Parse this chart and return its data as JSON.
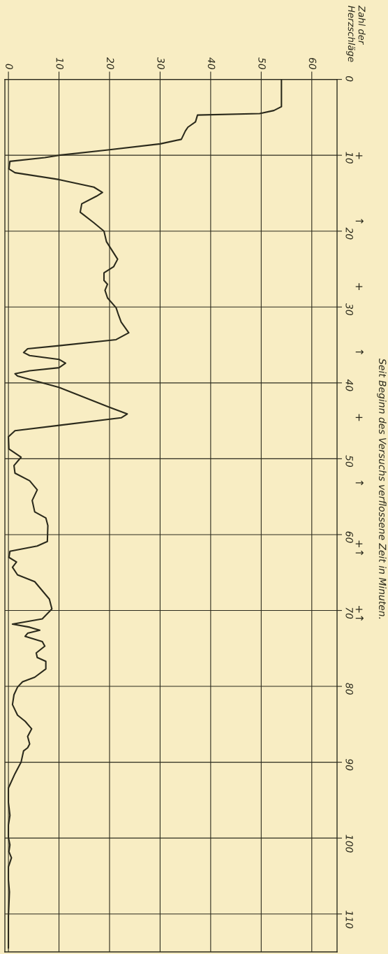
{
  "chart_data": {
    "type": "line",
    "title": "Zahl der\nHerzschläge",
    "ylabel": "Seit Beginn des Versuchs verflossene Zeit in Minuten.",
    "series": [
      {
        "color": "#2b2a1c",
        "x": [
          54,
          54,
          52.5,
          49.7,
          37.4,
          37,
          35.5,
          35,
          34.2,
          30,
          19.7,
          10,
          7.2,
          0.3,
          0.1,
          1.3,
          10,
          16.9,
          18.6,
          17.4,
          14.5,
          14.2,
          16.9,
          18.9,
          19.4,
          21.6,
          20.8,
          18.9,
          18.9,
          19.6,
          19.1,
          19.6,
          21.3,
          21.8,
          22.3,
          23.8,
          21.3,
          10,
          3.8,
          3,
          4.2,
          10,
          11.3,
          10,
          4.2,
          1.3,
          1.8,
          10,
          19.9,
          23.5,
          22.3,
          10,
          1.3,
          0,
          0.1,
          2.5,
          1.1,
          1.3,
          4.2,
          5.7,
          4.7,
          5.2,
          7.4,
          7.8,
          7.7,
          5.7,
          0.3,
          0.1,
          1.6,
          0.8,
          1.8,
          5.2,
          8.1,
          8.6,
          6.7,
          0.8,
          4.2,
          6.2,
          3.8,
          3.3,
          6.7,
          7.2,
          5.5,
          5.7,
          7.4,
          7.4,
          5.2,
          2.8,
          1.8,
          1.1,
          0.8,
          1.8,
          3.3,
          4.6,
          3.8,
          4.2,
          3.8,
          3,
          2.5,
          1.3,
          0,
          0,
          0.3,
          0,
          0,
          0.3,
          0.1,
          0.6,
          0,
          0,
          0.2,
          0,
          0
        ],
        "values": [
          0,
          3.6,
          4.1,
          4.5,
          4.7,
          5.6,
          6.3,
          6.8,
          7.9,
          8.5,
          9.3,
          10,
          10.3,
          10.8,
          11.8,
          12.3,
          13.2,
          14.2,
          14.9,
          15.4,
          16.4,
          17.5,
          18.9,
          20,
          21.4,
          23.7,
          24.7,
          25.5,
          26.5,
          27,
          27.8,
          28.8,
          30.1,
          31.1,
          32,
          33.4,
          34.3,
          35.1,
          35.5,
          36,
          36.4,
          36.9,
          37.4,
          38,
          38.4,
          38.8,
          39.1,
          40.6,
          43.2,
          44.1,
          44.6,
          45.6,
          46.3,
          47.1,
          48.7,
          49.8,
          50.9,
          51.9,
          52.9,
          54.1,
          55.5,
          57,
          57.8,
          58.8,
          60.9,
          61.5,
          62.2,
          63,
          63.6,
          64.3,
          65.3,
          66.2,
          68.5,
          69.8,
          71.1,
          71.8,
          72.2,
          72.6,
          73,
          73.4,
          74.1,
          74.7,
          75.6,
          76.2,
          76.7,
          77.7,
          78.8,
          79.4,
          80.1,
          81.1,
          82.4,
          83.8,
          84.6,
          85.6,
          86.6,
          87.6,
          88.1,
          88.5,
          90,
          91.5,
          93.4,
          95.3,
          97,
          98.3,
          99.9,
          100.9,
          101.8,
          102.6,
          103.8,
          105.5,
          107.1,
          110.3,
          114.5
        ]
      }
    ],
    "xlim": [
      -0.7,
      65
    ],
    "ylim": [
      115,
      0
    ],
    "xticks": [
      0,
      10,
      20,
      30,
      40,
      50,
      60
    ],
    "yticks": [
      0,
      10,
      20,
      30,
      40,
      50,
      60,
      70,
      80,
      90,
      100,
      110
    ],
    "annotations": [
      "+",
      "↑",
      "+",
      "↑",
      "+",
      "↑",
      "+↑",
      "+↑"
    ],
    "grid": true
  }
}
